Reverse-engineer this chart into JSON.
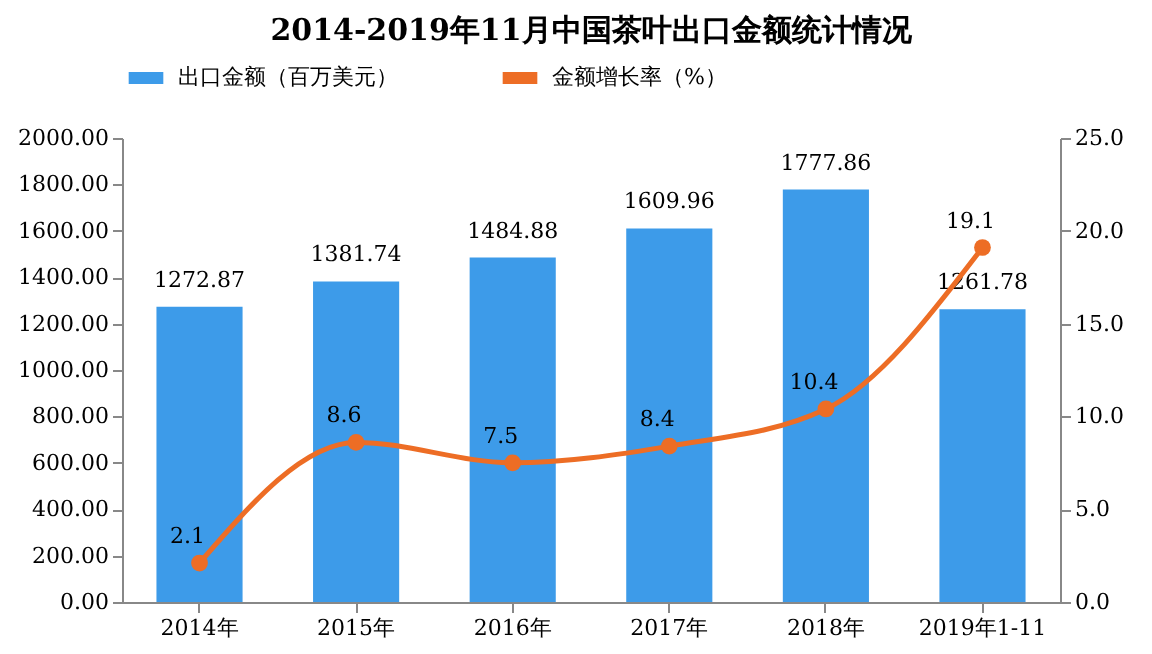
{
  "chart_data": {
    "type": "bar",
    "title": "2014-2019年11月中国茶叶出口金额统计情况",
    "categories": [
      "2014年",
      "2015年",
      "2016年",
      "2017年",
      "2018年",
      "2019年1-11"
    ],
    "series": [
      {
        "name": "出口金额（百万美元）",
        "color": "#3d9be9",
        "values": [
          1272.87,
          1381.74,
          1484.88,
          1609.96,
          1777.86,
          1261.78
        ]
      },
      {
        "name": "金额增长率（%）",
        "type": "line",
        "axis": "y2",
        "color": "#ed6d25",
        "values": [
          2.1,
          8.6,
          7.5,
          8.4,
          10.4,
          19.1
        ],
        "marker": "circle"
      }
    ],
    "ylim": [
      0,
      2000
    ],
    "yticks": [
      {
        "value": 0,
        "label": "0.00"
      },
      {
        "value": 200,
        "label": "200.00"
      },
      {
        "value": 400,
        "label": "400.00"
      },
      {
        "value": 600,
        "label": "600.00"
      },
      {
        "value": 800,
        "label": "800.00"
      },
      {
        "value": 1000,
        "label": "1000.00"
      },
      {
        "value": 1200,
        "label": "1200.00"
      },
      {
        "value": 1400,
        "label": "1400.00"
      },
      {
        "value": 1600,
        "label": "1600.00"
      },
      {
        "value": 1800,
        "label": "1800.00"
      },
      {
        "value": 2000,
        "label": "2000.00"
      }
    ],
    "y2lim": [
      0,
      25
    ],
    "y2ticks": [
      {
        "value": 0,
        "label": "0.0"
      },
      {
        "value": 5,
        "label": "5.0"
      },
      {
        "value": 10,
        "label": "10.0"
      },
      {
        "value": 15,
        "label": "15.0"
      },
      {
        "value": 20,
        "label": "20.0"
      },
      {
        "value": 25,
        "label": "25.0"
      }
    ],
    "data_labels": true,
    "legend": "top"
  }
}
